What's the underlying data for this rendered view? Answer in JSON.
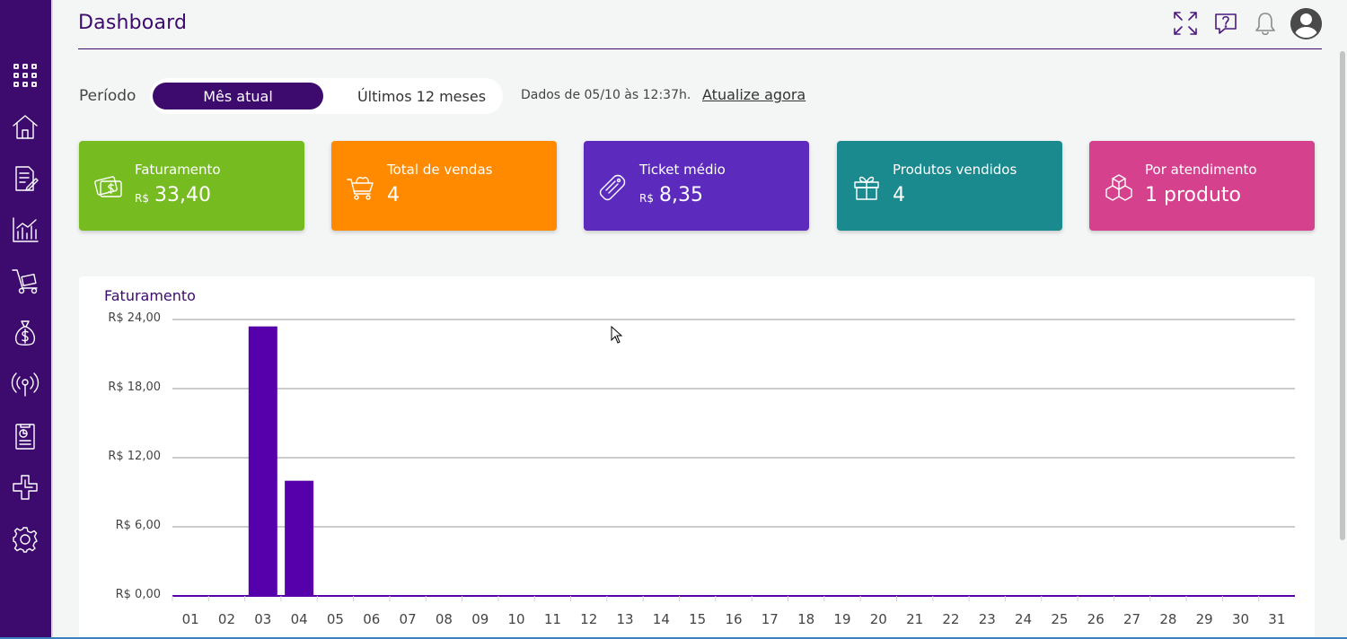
{
  "header": {
    "title": "Dashboard",
    "icons": [
      "expand-icon",
      "help-icon",
      "bell-icon",
      "user-avatar-icon"
    ]
  },
  "sidebar": {
    "items": [
      {
        "icon": "apps-grid-icon"
      },
      {
        "icon": "home-icon"
      },
      {
        "icon": "document-edit-icon"
      },
      {
        "icon": "bar-chart-icon"
      },
      {
        "icon": "cart-dolly-icon"
      },
      {
        "icon": "money-bag-icon"
      },
      {
        "icon": "broadcast-icon"
      },
      {
        "icon": "report-icon"
      },
      {
        "icon": "integration-icon"
      },
      {
        "icon": "gear-icon"
      }
    ]
  },
  "period": {
    "label": "Período",
    "options": [
      "Mês atual",
      "Últimos 12 meses"
    ],
    "selected": "Mês atual",
    "data_info": "Dados de 05/10 às 12:37h.",
    "refresh_label": "Atualize agora"
  },
  "cards": [
    {
      "title": "Faturamento",
      "currency": "R$",
      "value": "33,40",
      "color": "#76bc21",
      "icon": "money-icon"
    },
    {
      "title": "Total de vendas",
      "currency": "",
      "value": "4",
      "color": "#ff8a00",
      "icon": "cart-icon"
    },
    {
      "title": "Ticket médio",
      "currency": "R$",
      "value": "8,35",
      "color": "#5c2bbd",
      "icon": "ticket-icon"
    },
    {
      "title": "Produtos vendidos",
      "currency": "",
      "value": "4",
      "color": "#1b8a8f",
      "icon": "gift-icon"
    },
    {
      "title": "Por atendimento",
      "currency": "",
      "value": "1 produto",
      "color": "#d6418e",
      "icon": "boxes-icon"
    }
  ],
  "chart_data": {
    "type": "bar",
    "title": "Faturamento",
    "categories": [
      "01",
      "02",
      "03",
      "04",
      "05",
      "06",
      "07",
      "08",
      "09",
      "10",
      "11",
      "12",
      "13",
      "14",
      "15",
      "16",
      "17",
      "18",
      "19",
      "20",
      "21",
      "22",
      "23",
      "24",
      "25",
      "26",
      "27",
      "28",
      "29",
      "30",
      "31"
    ],
    "values": [
      0,
      0,
      23.4,
      10,
      0,
      0,
      0,
      0,
      0,
      0,
      0,
      0,
      0,
      0,
      0,
      0,
      0,
      0,
      0,
      0,
      0,
      0,
      0,
      0,
      0,
      0,
      0,
      0,
      0,
      0,
      0
    ],
    "ylim": [
      0,
      24
    ],
    "yticks": [
      0,
      6,
      12,
      18,
      24
    ],
    "ytick_labels": [
      "R$ 0,00",
      "R$ 6,00",
      "R$ 12,00",
      "R$ 18,00",
      "R$ 24,00"
    ],
    "bar_color": "#5500aa",
    "grid": true
  }
}
